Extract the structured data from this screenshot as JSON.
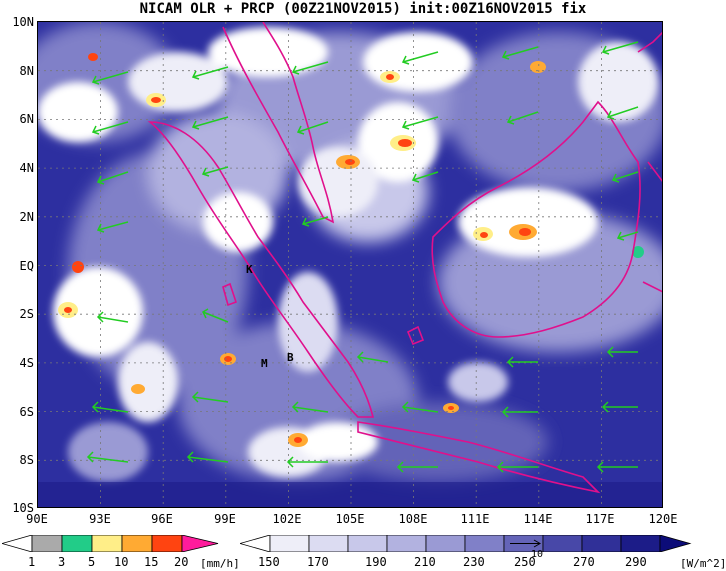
{
  "title": "NICAM OLR + PRCP (00Z21NOV2015) init:00Z16NOV2015 fix",
  "map": {
    "lat_labels": [
      "10N",
      "8N",
      "6N",
      "4N",
      "2N",
      "EQ",
      "2S",
      "4S",
      "6S",
      "8S",
      "10S"
    ],
    "lon_labels": [
      "90E",
      "93E",
      "96E",
      "99E",
      "102E",
      "105E",
      "108E",
      "111E",
      "114E",
      "117E",
      "120E"
    ],
    "extent": {
      "lon_min": 90,
      "lon_max": 120,
      "lat_min": -10,
      "lat_max": 10
    },
    "sites": [
      {
        "label": "K",
        "lon": 100.3,
        "lat": -0.1
      },
      {
        "label": "B",
        "lon": 102.2,
        "lat": -3.8
      },
      {
        "label": "M",
        "lon": 101.3,
        "lat": -4.0
      }
    ],
    "coastline_color": "#e0108c",
    "wind_vector_color": "#22cc22",
    "grid": true
  },
  "precip_bar": {
    "labels": [
      "1",
      "3",
      "5",
      "10",
      "15",
      "20"
    ],
    "unit": "[mm/h]",
    "colors": [
      "#ffffff",
      "#aaaaaa",
      "#22cc88",
      "#ffee88",
      "#ffaa33",
      "#ff4411",
      "#ff1c9c"
    ]
  },
  "olr_bar": {
    "labels": [
      "150",
      "170",
      "190",
      "210",
      "230",
      "250",
      "270",
      "290"
    ],
    "unit": "[W/m^2]",
    "reference_vector_label": "10",
    "colors": [
      "#ffffff",
      "#eeeef8",
      "#dcdcf2",
      "#c8c8ea",
      "#b2b2e0",
      "#9a9ad4",
      "#8080c8",
      "#6464b8",
      "#4848a8",
      "#303098",
      "#1c1c88",
      "#0c0c78"
    ]
  }
}
